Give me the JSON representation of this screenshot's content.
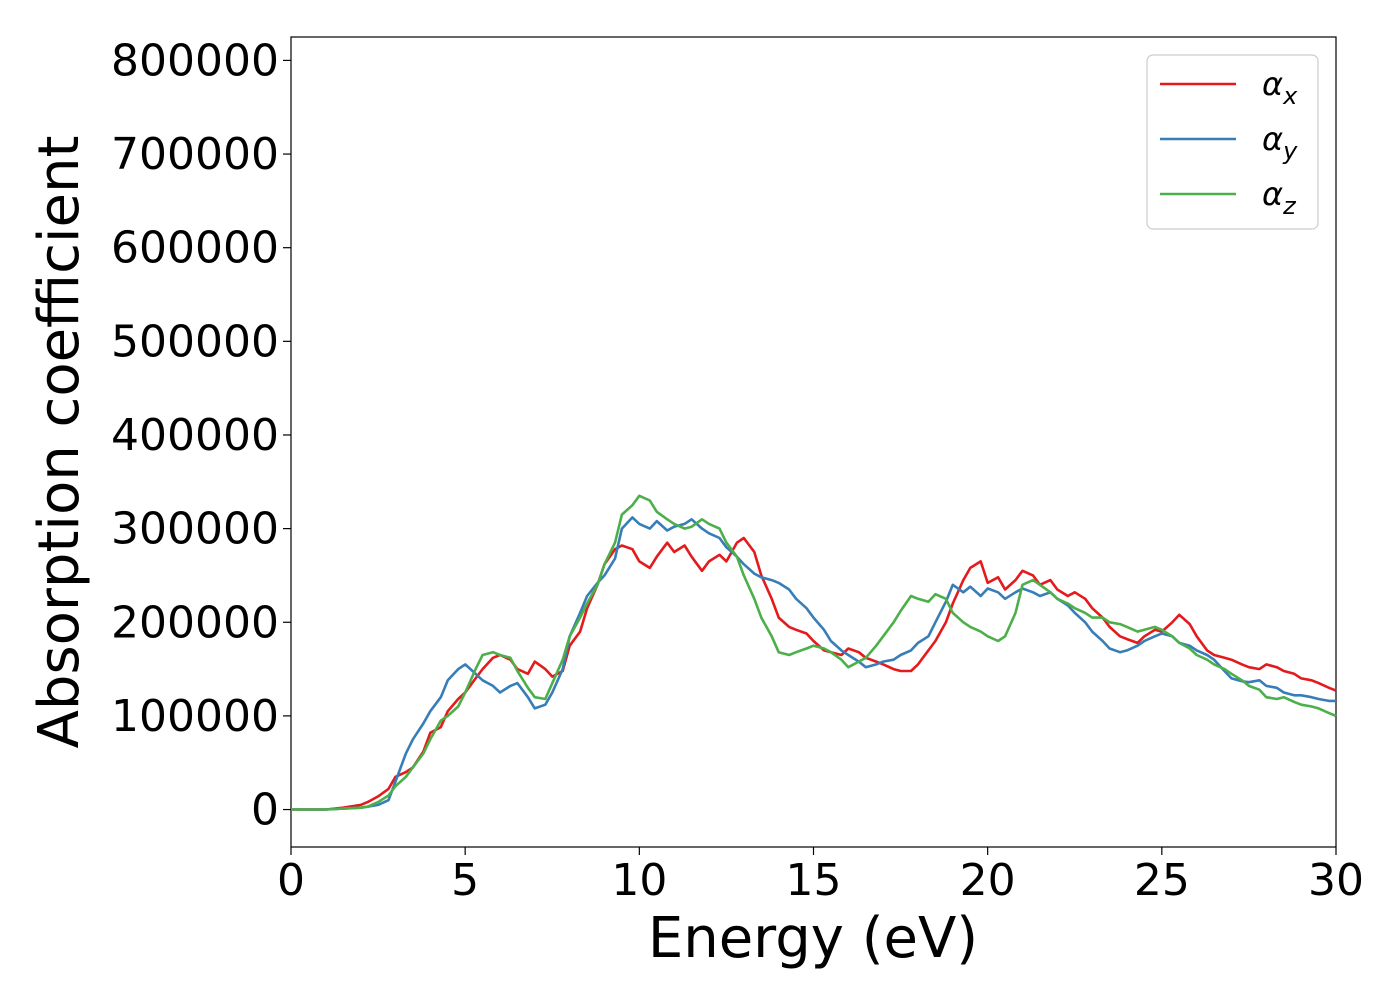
{
  "chart_data": {
    "type": "line",
    "title": "",
    "xlabel": "Energy (eV)",
    "ylabel": "Absorption coefficient",
    "xlim": [
      0,
      30
    ],
    "ylim": [
      -40000,
      825000
    ],
    "xticks": [
      0,
      5,
      10,
      15,
      20,
      25,
      30
    ],
    "yticks": [
      0,
      100000,
      200000,
      300000,
      400000,
      500000,
      600000,
      700000,
      800000
    ],
    "grid": false,
    "legend_position": "top-right",
    "x": [
      0,
      1,
      1.5,
      2,
      2.2,
      2.5,
      2.8,
      3,
      3.3,
      3.5,
      3.8,
      4,
      4.3,
      4.5,
      4.8,
      5,
      5.3,
      5.5,
      5.8,
      6,
      6.3,
      6.5,
      6.8,
      7,
      7.3,
      7.5,
      7.8,
      8,
      8.3,
      8.5,
      8.8,
      9,
      9.3,
      9.5,
      9.8,
      10,
      10.3,
      10.5,
      10.8,
      11,
      11.3,
      11.5,
      11.8,
      12,
      12.3,
      12.5,
      12.8,
      13,
      13.3,
      13.5,
      13.8,
      14,
      14.3,
      14.5,
      14.8,
      15,
      15.3,
      15.5,
      15.8,
      16,
      16.3,
      16.5,
      16.8,
      17,
      17.3,
      17.5,
      17.8,
      18,
      18.3,
      18.5,
      18.8,
      19,
      19.3,
      19.5,
      19.8,
      20,
      20.3,
      20.5,
      20.8,
      21,
      21.3,
      21.5,
      21.8,
      22,
      22.3,
      22.5,
      22.8,
      23,
      23.3,
      23.5,
      23.8,
      24,
      24.3,
      24.5,
      24.8,
      25,
      25.3,
      25.5,
      25.8,
      26,
      26.3,
      26.5,
      26.8,
      27,
      27.3,
      27.5,
      27.8,
      28,
      28.3,
      28.5,
      28.8,
      29,
      29.3,
      29.5,
      29.8,
      30
    ],
    "series": [
      {
        "name": "α",
        "subscript": "x",
        "color": "#e41a1c",
        "values": [
          0,
          0,
          2000,
          5000,
          8000,
          14000,
          22000,
          35000,
          40000,
          45000,
          62000,
          82000,
          88000,
          105000,
          118000,
          125000,
          140000,
          150000,
          162000,
          165000,
          160000,
          150000,
          145000,
          158000,
          150000,
          142000,
          148000,
          175000,
          190000,
          215000,
          240000,
          262000,
          278000,
          282000,
          278000,
          265000,
          258000,
          270000,
          285000,
          275000,
          282000,
          270000,
          255000,
          265000,
          272000,
          265000,
          285000,
          290000,
          275000,
          250000,
          225000,
          205000,
          195000,
          192000,
          188000,
          180000,
          170000,
          168000,
          165000,
          172000,
          168000,
          162000,
          158000,
          155000,
          150000,
          148000,
          148000,
          155000,
          170000,
          180000,
          200000,
          220000,
          245000,
          258000,
          265000,
          242000,
          248000,
          235000,
          245000,
          255000,
          250000,
          240000,
          245000,
          235000,
          228000,
          232000,
          225000,
          215000,
          205000,
          195000,
          185000,
          182000,
          178000,
          185000,
          192000,
          190000,
          200000,
          208000,
          198000,
          185000,
          170000,
          165000,
          162000,
          160000,
          155000,
          152000,
          150000,
          155000,
          152000,
          148000,
          145000,
          140000,
          138000,
          135000,
          130000,
          127000
        ]
      },
      {
        "name": "α",
        "subscript": "y",
        "color": "#377eb8",
        "values": [
          0,
          0,
          1000,
          2000,
          3000,
          5000,
          10000,
          30000,
          60000,
          75000,
          92000,
          105000,
          120000,
          138000,
          150000,
          155000,
          145000,
          138000,
          132000,
          125000,
          132000,
          135000,
          120000,
          108000,
          112000,
          125000,
          150000,
          185000,
          210000,
          228000,
          242000,
          250000,
          268000,
          300000,
          312000,
          305000,
          300000,
          308000,
          298000,
          302000,
          305000,
          310000,
          300000,
          295000,
          290000,
          280000,
          270000,
          262000,
          252000,
          248000,
          245000,
          242000,
          235000,
          225000,
          215000,
          205000,
          192000,
          180000,
          170000,
          165000,
          158000,
          152000,
          155000,
          158000,
          160000,
          165000,
          170000,
          178000,
          185000,
          200000,
          222000,
          240000,
          232000,
          238000,
          228000,
          236000,
          232000,
          225000,
          232000,
          236000,
          232000,
          228000,
          232000,
          225000,
          218000,
          210000,
          200000,
          190000,
          180000,
          172000,
          168000,
          170000,
          175000,
          180000,
          185000,
          188000,
          185000,
          178000,
          175000,
          170000,
          165000,
          160000,
          148000,
          140000,
          137000,
          136000,
          138000,
          132000,
          130000,
          125000,
          122000,
          122000,
          120000,
          118000,
          116000,
          116000
        ]
      },
      {
        "name": "α",
        "subscript": "z",
        "color": "#4daf4a",
        "values": [
          0,
          0,
          1000,
          2000,
          3000,
          8000,
          15000,
          25000,
          35000,
          45000,
          60000,
          75000,
          95000,
          100000,
          110000,
          125000,
          150000,
          165000,
          168000,
          165000,
          162000,
          148000,
          130000,
          120000,
          118000,
          135000,
          160000,
          185000,
          205000,
          220000,
          240000,
          262000,
          285000,
          315000,
          325000,
          335000,
          330000,
          318000,
          310000,
          305000,
          300000,
          302000,
          310000,
          305000,
          300000,
          285000,
          270000,
          250000,
          225000,
          205000,
          185000,
          168000,
          165000,
          168000,
          172000,
          175000,
          172000,
          168000,
          160000,
          152000,
          158000,
          162000,
          175000,
          185000,
          200000,
          212000,
          228000,
          225000,
          222000,
          230000,
          225000,
          210000,
          200000,
          195000,
          190000,
          185000,
          180000,
          185000,
          210000,
          240000,
          245000,
          240000,
          232000,
          225000,
          220000,
          215000,
          210000,
          205000,
          205000,
          200000,
          198000,
          195000,
          190000,
          192000,
          195000,
          192000,
          185000,
          178000,
          172000,
          165000,
          160000,
          155000,
          150000,
          145000,
          138000,
          132000,
          128000,
          120000,
          118000,
          120000,
          115000,
          112000,
          110000,
          108000,
          103000,
          100000
        ]
      }
    ]
  }
}
